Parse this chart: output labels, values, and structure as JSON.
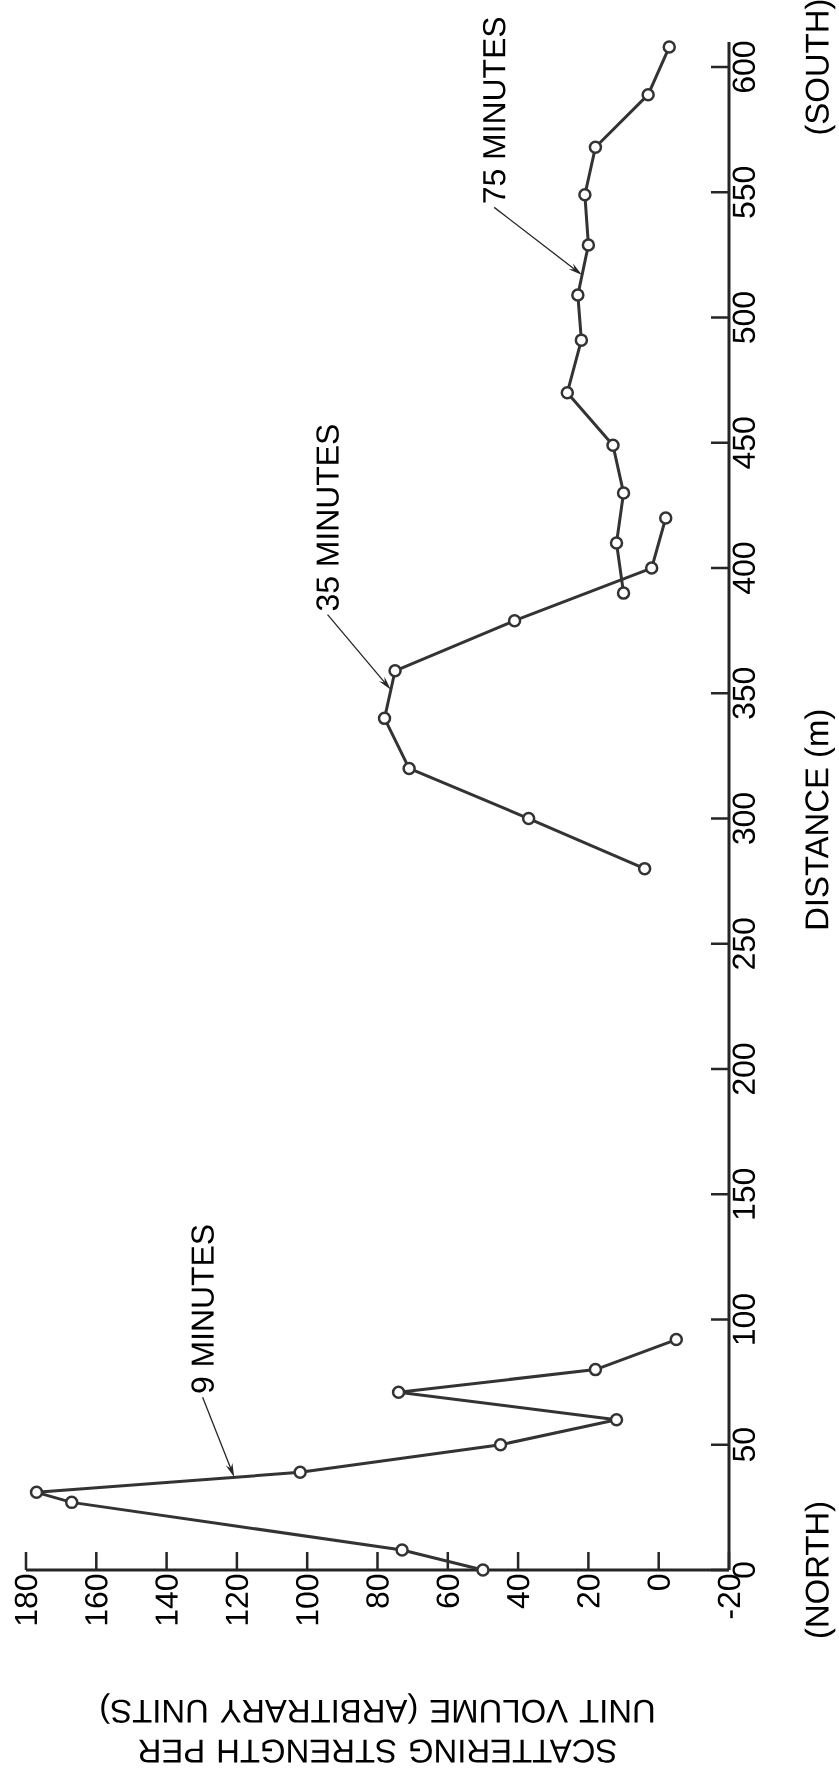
{
  "chart_data": {
    "type": "line",
    "xlabel": "SCATTERING STRENGTH PER UNIT VOLUME (ARBITRARY UNITS)",
    "ylabel": "DISTANCE (m)",
    "xlim": [
      180,
      -20
    ],
    "ylim": [
      0,
      610
    ],
    "xticks": [
      -20,
      0,
      20,
      40,
      60,
      80,
      100,
      120,
      140,
      160,
      180
    ],
    "yticks": [
      0,
      50,
      100,
      150,
      200,
      250,
      300,
      350,
      400,
      450,
      500,
      550,
      600
    ],
    "marker": "circle",
    "line_style": "solid",
    "annotations": [
      "(NORTH)",
      "(SOUTH)"
    ],
    "series": [
      {
        "name": "9 MINUTES",
        "color": "#333333",
        "x": [
          50,
          73,
          167,
          177,
          102,
          45,
          12,
          74,
          18,
          -5
        ],
        "values": [
          0,
          8,
          27,
          31,
          39,
          50,
          60,
          71,
          80,
          92
        ]
      },
      {
        "name": "35 MINUTES",
        "color": "#333333",
        "x": [
          4,
          37,
          71,
          78,
          75,
          41,
          2,
          -2
        ],
        "values": [
          280,
          300,
          320,
          340,
          359,
          379,
          400,
          420
        ]
      },
      {
        "name": "75 MINUTES",
        "color": "#333333",
        "x": [
          10,
          12,
          10,
          13,
          26,
          22,
          23,
          20,
          21,
          18,
          3,
          -3
        ],
        "values": [
          390,
          410,
          430,
          449,
          470,
          491,
          509,
          529,
          549,
          568,
          589,
          608
        ]
      }
    ]
  }
}
